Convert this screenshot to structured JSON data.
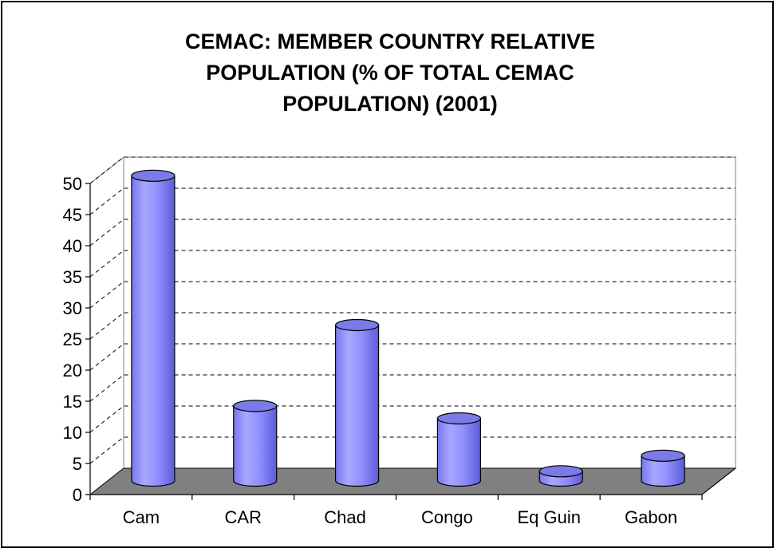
{
  "chart_data": {
    "type": "bar",
    "title_lines": [
      "CEMAC: MEMBER COUNTRY RELATIVE",
      "POPULATION (% OF TOTAL CEMAC",
      "POPULATION) (2001)"
    ],
    "categories": [
      "Cam",
      "CAR",
      "Chad",
      "Congo",
      "Eq Guin",
      "Gabon"
    ],
    "values": [
      49,
      12,
      25,
      10,
      1.5,
      4
    ],
    "xlabel": "",
    "ylabel": "",
    "ylim": [
      0,
      50
    ],
    "yticks": [
      0,
      5,
      10,
      15,
      20,
      25,
      30,
      35,
      40,
      45,
      50
    ],
    "grid": true,
    "bar_style": "3d-cylinder",
    "colors": {
      "bar": "#8F8FFF",
      "bar_top": "#7A7AE8",
      "floor": "#808080",
      "grid": "#000000"
    }
  }
}
